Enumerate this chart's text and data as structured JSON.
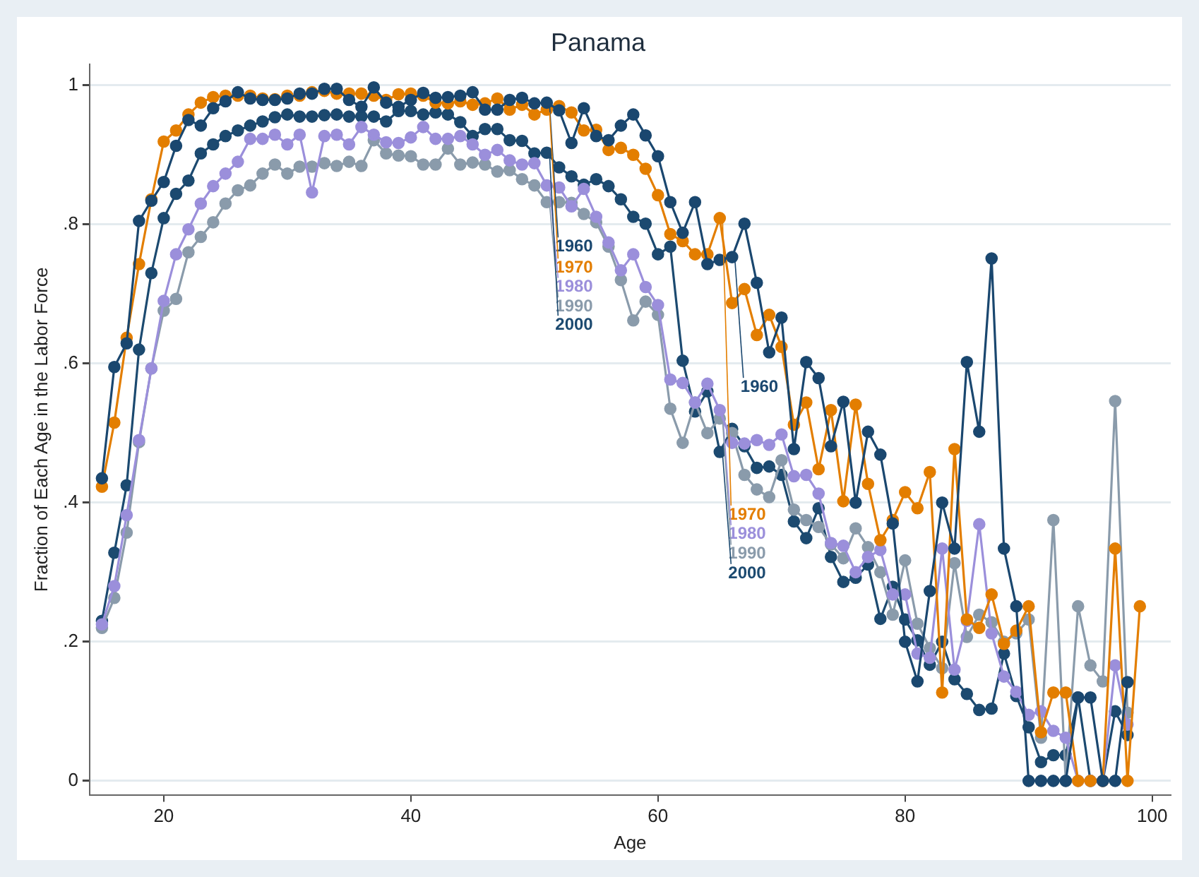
{
  "chart_data": {
    "type": "line",
    "title": "Panama",
    "xlabel": "Age",
    "ylabel": "Fraction of Each Age in the Labor Force",
    "x": [
      15,
      16,
      17,
      18,
      19,
      20,
      21,
      22,
      23,
      24,
      25,
      26,
      27,
      28,
      29,
      30,
      31,
      32,
      33,
      34,
      35,
      36,
      37,
      38,
      39,
      40,
      41,
      42,
      43,
      44,
      45,
      46,
      47,
      48,
      49,
      50,
      51,
      52,
      53,
      54,
      55,
      56,
      57,
      58,
      59,
      60,
      61,
      62,
      63,
      64,
      65,
      66,
      67,
      68,
      69,
      70,
      71,
      72,
      73,
      74,
      75,
      76,
      77,
      78,
      79,
      80,
      81,
      82,
      83,
      84,
      85,
      86,
      87,
      88,
      89,
      90,
      91,
      92,
      93,
      94,
      95,
      96,
      97,
      98,
      99
    ],
    "series": [
      {
        "color": "#1a476f",
        "values": [
          0.435,
          0.595,
          0.629,
          0.805,
          0.834,
          0.861,
          0.913,
          0.95,
          0.942,
          0.967,
          0.977,
          0.99,
          0.981,
          0.979,
          0.979,
          0.981,
          0.988,
          0.988,
          0.995,
          0.995,
          0.979,
          0.969,
          0.997,
          0.975,
          0.969,
          0.979,
          0.989,
          0.982,
          0.983,
          0.985,
          0.99,
          0.965,
          0.965,
          0.979,
          0.982,
          0.974,
          0.975,
          0.964,
          0.917,
          0.967,
          0.927,
          0.921,
          0.942,
          0.958,
          0.928,
          0.898,
          0.832,
          0.788,
          0.832,
          0.743,
          0.749,
          0.753,
          0.801,
          0.716,
          0.616,
          0.666,
          0.477,
          0.602,
          0.579,
          0.481,
          0.545,
          0.4,
          0.502,
          0.469,
          0.37,
          0.2,
          0.143,
          0.273,
          0.4,
          0.334,
          0.602,
          0.502,
          0.751,
          0.334,
          0.251,
          0,
          0,
          0,
          0,
          0.12,
          0.12,
          0,
          0,
          0.142,
          null
        ]
      },
      {
        "color": "#e37e00",
        "values": [
          0.423,
          0.515,
          0.637,
          0.743,
          0.836,
          0.919,
          0.935,
          0.958,
          0.975,
          0.983,
          0.985,
          0.985,
          0.985,
          0.981,
          0.98,
          0.985,
          0.985,
          0.99,
          0.992,
          0.988,
          0.988,
          0.988,
          0.985,
          0.979,
          0.987,
          0.988,
          0.985,
          0.975,
          0.974,
          0.977,
          0.972,
          0.974,
          0.981,
          0.965,
          0.972,
          0.958,
          0.965,
          0.97,
          0.961,
          0.935,
          0.936,
          0.907,
          0.91,
          0.9,
          0.88,
          0.842,
          0.786,
          0.776,
          0.757,
          0.757,
          0.809,
          0.687,
          0.707,
          0.641,
          0.67,
          0.624,
          0.512,
          0.544,
          0.448,
          0.533,
          0.402,
          0.541,
          0.427,
          0.346,
          0.375,
          0.415,
          0.392,
          0.444,
          0.127,
          0.477,
          0.232,
          0.22,
          0.268,
          0.197,
          0.216,
          0.251,
          0.07,
          0.127,
          0.127,
          0,
          0,
          0,
          0.334,
          0,
          0.251
        ]
      },
      {
        "color": "#9b8fdb",
        "values": [
          0.225,
          0.28,
          0.382,
          0.49,
          0.593,
          0.69,
          0.757,
          0.793,
          0.83,
          0.855,
          0.873,
          0.89,
          0.923,
          0.923,
          0.929,
          0.915,
          0.929,
          0.846,
          0.927,
          0.929,
          0.915,
          0.94,
          0.929,
          0.918,
          0.917,
          0.925,
          0.94,
          0.923,
          0.923,
          0.927,
          0.915,
          0.9,
          0.907,
          0.892,
          0.886,
          0.888,
          0.856,
          0.853,
          0.826,
          0.851,
          0.811,
          0.774,
          0.734,
          0.757,
          0.71,
          0.684,
          0.577,
          0.572,
          0.544,
          0.571,
          0.533,
          0.486,
          0.485,
          0.49,
          0.483,
          0.498,
          0.438,
          0.44,
          0.413,
          0.342,
          0.338,
          0.3,
          0.322,
          0.332,
          0.268,
          0.268,
          0.183,
          0.177,
          0.334,
          0.16,
          0.23,
          0.369,
          0.212,
          0.15,
          0.128,
          0.095,
          0.1,
          0.072,
          0.062,
          0,
          0,
          0,
          0.166,
          0.081,
          null
        ]
      },
      {
        "color": "#8a9bab",
        "values": [
          0.22,
          0.263,
          0.357,
          0.487,
          0.593,
          0.676,
          0.693,
          0.76,
          0.782,
          0.803,
          0.83,
          0.849,
          0.856,
          0.873,
          0.886,
          0.873,
          0.883,
          0.883,
          0.888,
          0.884,
          0.89,
          0.884,
          0.921,
          0.902,
          0.899,
          0.898,
          0.886,
          0.886,
          0.909,
          0.886,
          0.889,
          0.886,
          0.876,
          0.878,
          0.865,
          0.856,
          0.832,
          0.832,
          0.831,
          0.815,
          0.803,
          0.768,
          0.72,
          0.662,
          0.689,
          0.67,
          0.535,
          0.486,
          0.544,
          0.5,
          0.521,
          0.5,
          0.44,
          0.419,
          0.408,
          0.461,
          0.39,
          0.375,
          0.365,
          0.34,
          0.32,
          0.363,
          0.336,
          0.3,
          0.239,
          0.317,
          0.226,
          0.191,
          0.162,
          0.313,
          0.207,
          0.239,
          0.228,
          0.2,
          0.212,
          0.232,
          0.062,
          0.375,
          0,
          0.251,
          0.166,
          0.143,
          0.546,
          0.098,
          null
        ]
      },
      {
        "color": "#1c4a70",
        "values": [
          0.23,
          0.328,
          0.425,
          0.62,
          0.73,
          0.809,
          0.844,
          0.863,
          0.902,
          0.915,
          0.927,
          0.935,
          0.942,
          0.948,
          0.954,
          0.958,
          0.955,
          0.955,
          0.957,
          0.958,
          0.955,
          0.955,
          0.955,
          0.948,
          0.963,
          0.963,
          0.958,
          0.961,
          0.958,
          0.947,
          0.927,
          0.937,
          0.937,
          0.921,
          0.92,
          0.902,
          0.903,
          0.882,
          0.869,
          0.857,
          0.865,
          0.855,
          0.836,
          0.811,
          0.801,
          0.757,
          0.768,
          0.604,
          0.531,
          0.56,
          0.473,
          0.506,
          0.481,
          0.45,
          0.452,
          0.44,
          0.373,
          0.349,
          0.392,
          0.322,
          0.286,
          0.292,
          0.311,
          0.233,
          0.279,
          0.232,
          0.202,
          0.167,
          0.2,
          0.146,
          0.125,
          0.102,
          0.104,
          0.183,
          0.122,
          0.077,
          0.027,
          0.037,
          0.037,
          0.12,
          0,
          0,
          0.1,
          0.066,
          null
        ]
      }
    ],
    "annotations": [
      {
        "text": "1960",
        "x": 51,
        "y": 0.975
      },
      {
        "text": "1970",
        "x": 51,
        "y": 0.965
      },
      {
        "text": "1980",
        "x": 51,
        "y": 0.856
      },
      {
        "text": "1990",
        "x": 51,
        "y": 0.832
      },
      {
        "text": "2000",
        "x": 51,
        "y": 0.903
      },
      {
        "text": "1960",
        "x": 66,
        "y": 0.753
      },
      {
        "text": "1970",
        "x": 65,
        "y": 0.809
      },
      {
        "text": "1980",
        "x": 65,
        "y": 0.533
      },
      {
        "text": "1990",
        "x": 65,
        "y": 0.521
      },
      {
        "text": "2000",
        "x": 65,
        "y": 0.473
      }
    ],
    "xlim": [
      14,
      101.5
    ],
    "ylim": [
      -0.02,
      1.03
    ],
    "xticks": [
      20,
      40,
      60,
      80,
      100
    ],
    "yticks": [
      0,
      {
        "value": 0.2,
        "label": ".2"
      },
      {
        "value": 0.4,
        "label": ".4"
      },
      {
        "value": 0.6,
        "label": ".6"
      },
      {
        "value": 0.8,
        "label": ".8"
      },
      1
    ],
    "grid": "y",
    "marker": "circle"
  }
}
